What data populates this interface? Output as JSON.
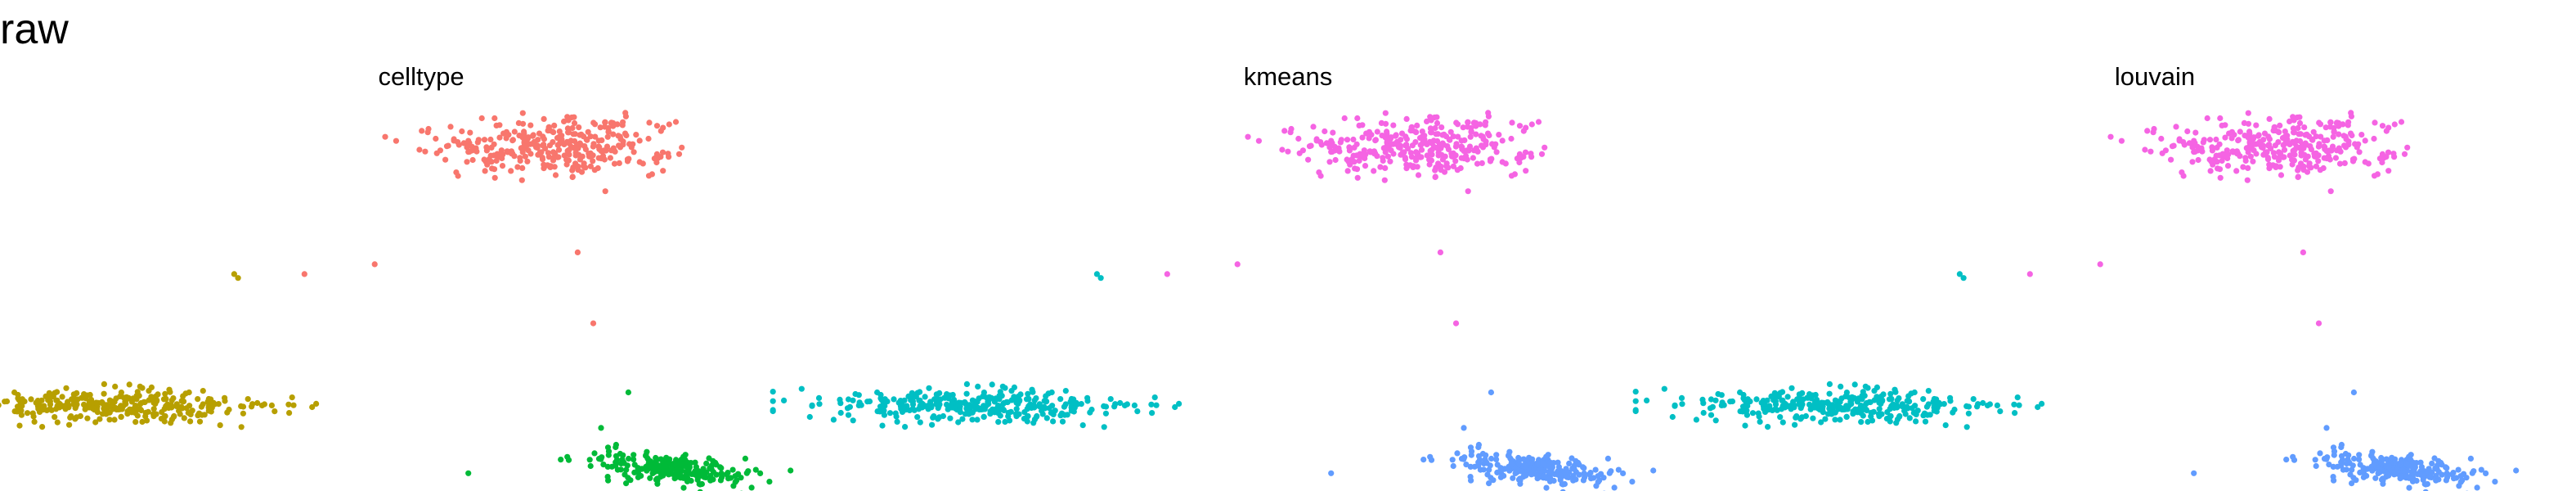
{
  "title": "raw",
  "chart_data": [
    {
      "type": "scatter",
      "title": "celltype",
      "color_key": [
        "#F8766D",
        "#B79F00",
        "#00BA38"
      ],
      "clusters": [
        {
          "color": "#F8766D",
          "n": 330,
          "cx": 0,
          "cy": 1.0,
          "sx": 0.075,
          "sy": 0.075,
          "rot": -0.62
        },
        {
          "color": "#B79F00",
          "n": 330,
          "cx": -0.555,
          "cy": -0.32,
          "sx": 0.1,
          "sy": 0.043,
          "rot": 0.0
        },
        {
          "color": "#00BA38",
          "n": 230,
          "cx": 0.165,
          "cy": -0.64,
          "sx": 0.058,
          "sy": 0.036,
          "rot": -0.55
        }
      ],
      "outliers": [
        {
          "color": "#B79F00",
          "x": -0.4,
          "y": 0.35
        },
        {
          "color": "#B79F00",
          "x": -0.395,
          "y": 0.33
        },
        {
          "color": "#F8766D",
          "x": -0.31,
          "y": 0.35
        },
        {
          "color": "#F8766D",
          "x": -0.22,
          "y": 0.4
        },
        {
          "color": "#F8766D",
          "x": 0.04,
          "y": 0.46
        },
        {
          "color": "#F8766D",
          "x": 0.06,
          "y": 0.1
        },
        {
          "color": "#00BA38",
          "x": 0.105,
          "y": -0.25
        },
        {
          "color": "#00BA38",
          "x": 0.07,
          "y": -0.43
        },
        {
          "color": "#00BA38",
          "x": -0.1,
          "y": -0.66
        },
        {
          "color": "#B79F00",
          "x": -0.44,
          "y": -0.31
        }
      ]
    },
    {
      "type": "scatter",
      "title": "kmeans",
      "color_key": [
        "#F564E3",
        "#00BFC4",
        "#619CFF"
      ],
      "clusters": [
        {
          "color": "#F564E3",
          "n": 330,
          "cx": 0,
          "cy": 1.0,
          "sx": 0.075,
          "sy": 0.075,
          "rot": -0.62
        },
        {
          "color": "#00BFC4",
          "n": 330,
          "cx": -0.555,
          "cy": -0.32,
          "sx": 0.1,
          "sy": 0.043,
          "rot": 0.0
        },
        {
          "color": "#619CFF",
          "n": 230,
          "cx": 0.165,
          "cy": -0.64,
          "sx": 0.058,
          "sy": 0.036,
          "rot": -0.55
        }
      ],
      "outliers": [
        {
          "color": "#00BFC4",
          "x": -0.4,
          "y": 0.35
        },
        {
          "color": "#00BFC4",
          "x": -0.395,
          "y": 0.33
        },
        {
          "color": "#F564E3",
          "x": -0.31,
          "y": 0.35
        },
        {
          "color": "#F564E3",
          "x": -0.22,
          "y": 0.4
        },
        {
          "color": "#F564E3",
          "x": 0.04,
          "y": 0.46
        },
        {
          "color": "#F564E3",
          "x": 0.06,
          "y": 0.1
        },
        {
          "color": "#619CFF",
          "x": 0.105,
          "y": -0.25
        },
        {
          "color": "#619CFF",
          "x": 0.07,
          "y": -0.43
        },
        {
          "color": "#619CFF",
          "x": -0.1,
          "y": -0.66
        },
        {
          "color": "#00BFC4",
          "x": -0.44,
          "y": -0.31
        }
      ]
    },
    {
      "type": "scatter",
      "title": "louvain",
      "color_key": [
        "#F564E3",
        "#00BFC4",
        "#619CFF"
      ],
      "clusters": [
        {
          "color": "#F564E3",
          "n": 330,
          "cx": 0,
          "cy": 1.0,
          "sx": 0.075,
          "sy": 0.075,
          "rot": -0.62
        },
        {
          "color": "#00BFC4",
          "n": 330,
          "cx": -0.555,
          "cy": -0.32,
          "sx": 0.1,
          "sy": 0.043,
          "rot": 0.0
        },
        {
          "color": "#619CFF",
          "n": 230,
          "cx": 0.165,
          "cy": -0.64,
          "sx": 0.058,
          "sy": 0.036,
          "rot": -0.55
        }
      ],
      "outliers": [
        {
          "color": "#00BFC4",
          "x": -0.4,
          "y": 0.35
        },
        {
          "color": "#00BFC4",
          "x": -0.395,
          "y": 0.33
        },
        {
          "color": "#F564E3",
          "x": -0.31,
          "y": 0.35
        },
        {
          "color": "#F564E3",
          "x": -0.22,
          "y": 0.4
        },
        {
          "color": "#F564E3",
          "x": 0.04,
          "y": 0.46
        },
        {
          "color": "#F564E3",
          "x": 0.06,
          "y": 0.1
        },
        {
          "color": "#619CFF",
          "x": 0.105,
          "y": -0.25
        },
        {
          "color": "#619CFF",
          "x": 0.07,
          "y": -0.43
        },
        {
          "color": "#619CFF",
          "x": -0.1,
          "y": -0.66
        },
        {
          "color": "#00BFC4",
          "x": -0.44,
          "y": -0.31
        }
      ]
    }
  ]
}
